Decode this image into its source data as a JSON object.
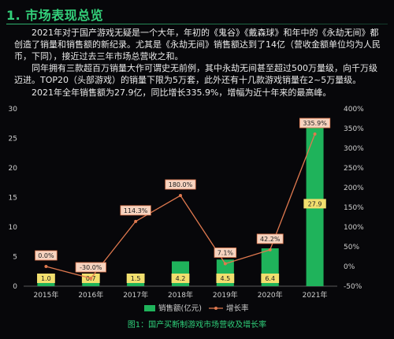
{
  "section_title": "1. 市场表现总览",
  "paragraphs": [
    "2021年对于国产游戏无疑是一个大年，年初的《鬼谷》《戴森球》和年中的《永劫无间》都创造了销量和销售额的新纪录。尤其是《永劫无间》销售额达到了14亿（营收金额单位均为人民币，下同），接近过去三年市场总营收之和。",
    "同年拥有三款超百万销量大作可谓史无前例，其中永劫无间甚至超过500万量级，向千万级迈进。TOP20（头部游戏）的销量下限为5万套，此外还有十几款游戏销量在2~5万量级。",
    "2021年全年销售额为27.9亿，同比增长335.9%，增幅为近十年来的最高峰。"
  ],
  "colors": {
    "title": "#33d07a",
    "bar": "#1fb35b",
    "line": "#e0794f",
    "label_bg": "#f6d3bf",
    "label_border": "#e0794f",
    "value_label_bg": "#f2df6e",
    "axis_text": "#cfcfcf",
    "grid": "#2a2a2a",
    "caption": "#2fd07a"
  },
  "chart_data": {
    "type": "bar",
    "categories": [
      "2015年",
      "2016年",
      "2017年",
      "2018年",
      "2019年",
      "2020年",
      "2021年"
    ],
    "series": [
      {
        "name": "销售额(亿元)",
        "type": "bar",
        "axis": "left",
        "values": [
          1.0,
          0.7,
          1.5,
          4.2,
          4.5,
          6.4,
          27.9
        ]
      },
      {
        "name": "增长率",
        "type": "line",
        "axis": "right",
        "values": [
          0.0,
          -30.0,
          114.3,
          180.0,
          7.1,
          42.2,
          335.9
        ]
      }
    ],
    "bar_labels": [
      "1.0",
      "0.7",
      "1.5",
      "4.2",
      "4.5",
      "6.4",
      "27.9"
    ],
    "line_labels": [
      "0.0%",
      "-30.0%",
      "114.3%",
      "180.0%",
      "7.1%",
      "42.2%",
      "335.9%"
    ],
    "y_left": {
      "ylim": [
        0,
        30
      ],
      "ticks": [
        0,
        5,
        10,
        15,
        20,
        25,
        30
      ]
    },
    "y_right": {
      "ylim": [
        -50,
        400
      ],
      "ticks": [
        "-50%",
        "0%",
        "50%",
        "100%",
        "150%",
        "200%",
        "250%",
        "300%",
        "350%",
        "400%"
      ],
      "tick_values": [
        -50,
        0,
        50,
        100,
        150,
        200,
        250,
        300,
        350,
        400
      ]
    },
    "grid": false,
    "legend": "bottom",
    "caption": "图1：国产买断制游戏市场营收及增长率"
  }
}
